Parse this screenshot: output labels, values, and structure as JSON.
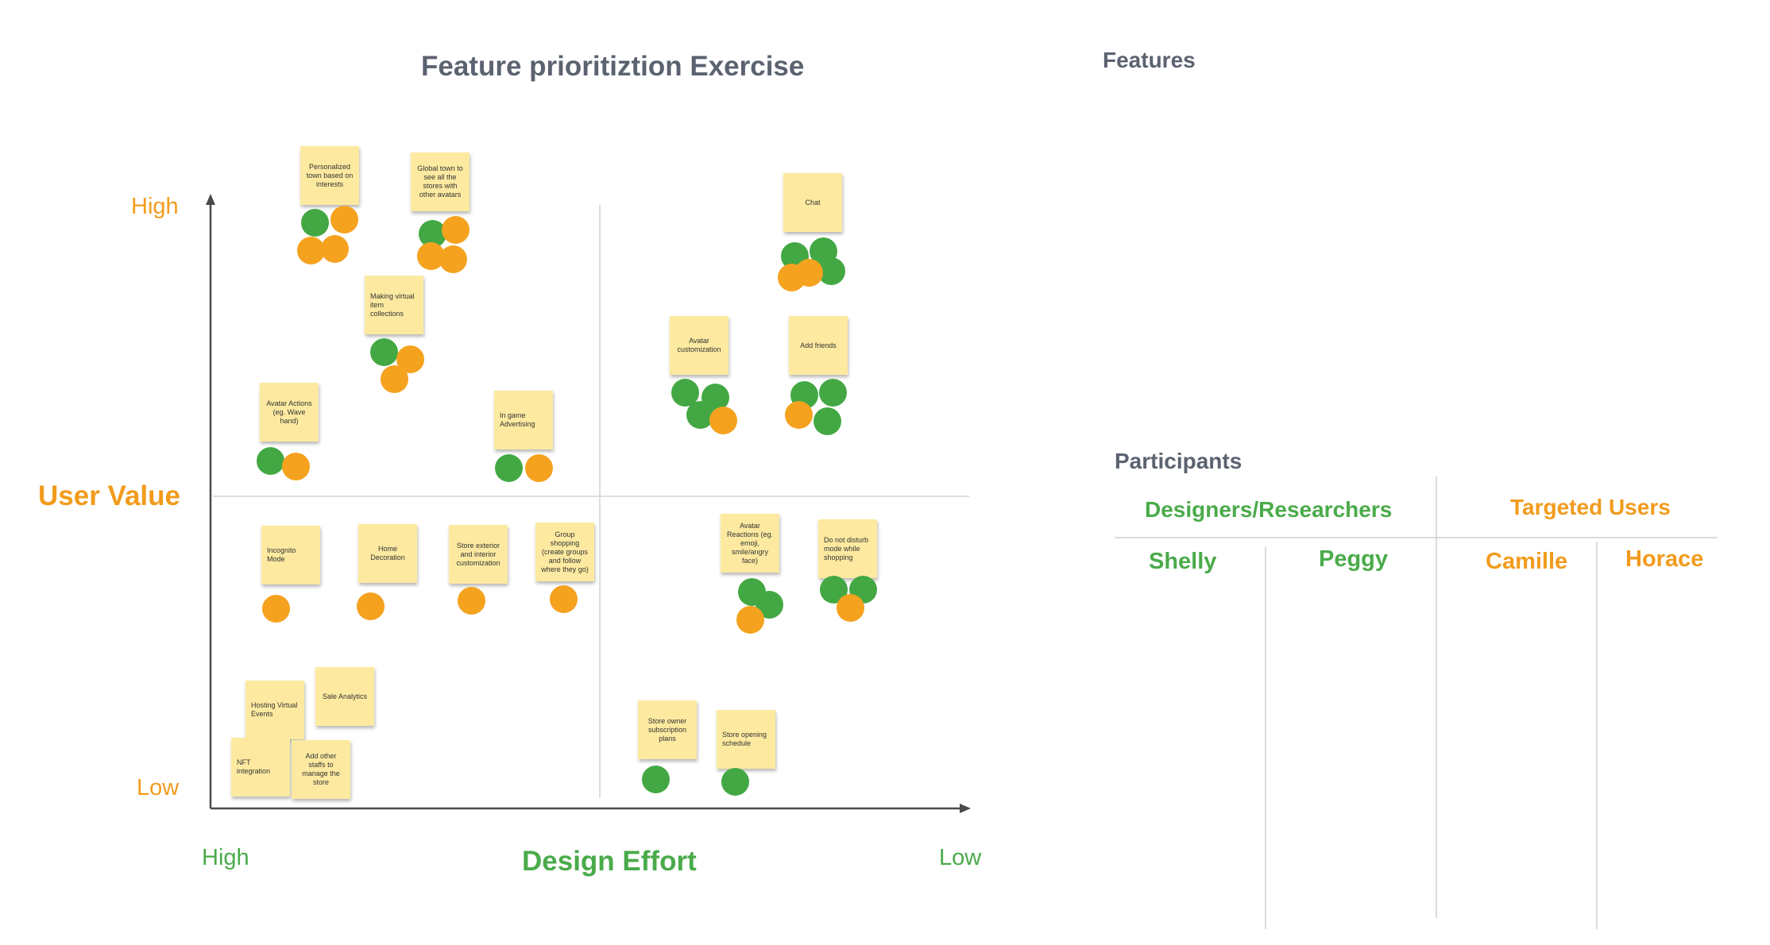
{
  "title": "Feature prioritiztion Exercise",
  "features_heading": "Features",
  "participants_heading": "Participants",
  "axes": {
    "y_title": "User Value",
    "y_high": "High",
    "y_low": "Low",
    "x_title": "Design Effort",
    "x_high": "High",
    "x_low": "Low"
  },
  "colors": {
    "designers_green": "#43a843",
    "users_orange": "#f5a21f",
    "note_yellow": "#fdeaa0",
    "heading_gray": "#5b6270"
  },
  "notes": [
    {
      "id": "personalized-town",
      "text": "Personalized town based on interests"
    },
    {
      "id": "global-town",
      "text": "Global town to see all the stores with other avatars"
    },
    {
      "id": "chat",
      "text": "Chat"
    },
    {
      "id": "making-virtual-item",
      "text": "Making virtual item collections"
    },
    {
      "id": "avatar-customization",
      "text": "Avatar customization"
    },
    {
      "id": "add-friends",
      "text": "Add friends"
    },
    {
      "id": "avatar-actions",
      "text": "Avatar Actions (eg. Wave hand)"
    },
    {
      "id": "in-game-advertising",
      "text": "In game Advertising"
    },
    {
      "id": "incognito-mode",
      "text": "Incognito Mode"
    },
    {
      "id": "home-decoration",
      "text": "Home Decoration"
    },
    {
      "id": "store-exterior",
      "text": "Store exterior and interior customization"
    },
    {
      "id": "group-shopping",
      "text": "Group shopping (create groups and follow where they go)"
    },
    {
      "id": "avatar-reactions",
      "text": "Avatar Reactions (eg. emoji, smile/angry face)"
    },
    {
      "id": "do-not-disturb",
      "text": "Do not disturb mode while shopping"
    },
    {
      "id": "sale-analytics",
      "text": "Sale Analytics"
    },
    {
      "id": "hosting-virtual-events",
      "text": "Hosting Virtual Events"
    },
    {
      "id": "nft-integration",
      "text": "NFT integration"
    },
    {
      "id": "add-other-staffs",
      "text": "Add other staffs to manage the store"
    },
    {
      "id": "store-owner-subscription",
      "text": "Store owner subscription plans"
    },
    {
      "id": "store-opening-schedule",
      "text": "Store opening schedule"
    }
  ],
  "participants": {
    "designers_header": "Designers/Researchers",
    "users_header": "Targeted Users",
    "designers": [
      "Shelly",
      "Peggy"
    ],
    "users": [
      "Camille",
      "Horace"
    ]
  }
}
